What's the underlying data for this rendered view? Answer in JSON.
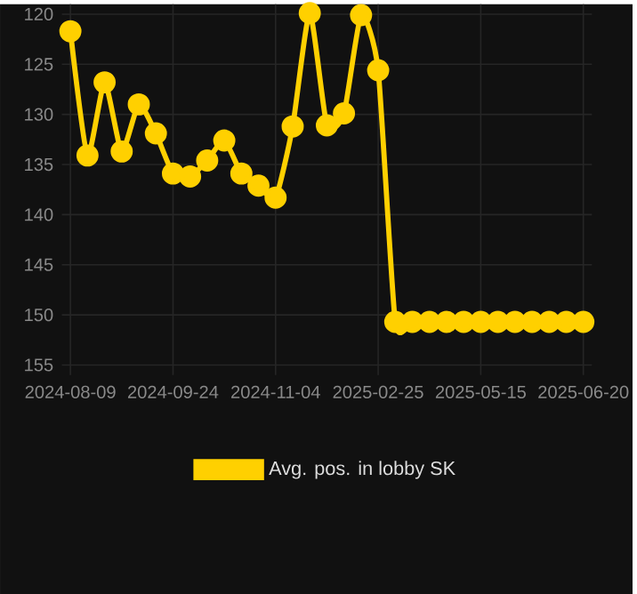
{
  "chart_data": {
    "type": "line",
    "categories": [
      "2024-08-09",
      null,
      null,
      null,
      null,
      null,
      "2024-09-24",
      null,
      null,
      null,
      null,
      null,
      "2024-11-04",
      null,
      null,
      null,
      null,
      null,
      "2025-02-25",
      null,
      null,
      null,
      null,
      null,
      "2025-05-15",
      null,
      null,
      null,
      null,
      null,
      "2025-06-20"
    ],
    "series": [
      {
        "name": "Avg. pos. in lobby SK",
        "color": "#ffd000",
        "values": [
          121.7,
          134.1,
          126.8,
          133.7,
          129.0,
          131.9,
          135.9,
          136.2,
          134.6,
          132.6,
          135.9,
          137.1,
          138.3,
          131.2,
          119.9,
          131.1,
          129.9,
          120.1,
          125.6,
          150.7,
          150.7,
          150.7,
          150.7,
          150.7,
          150.7,
          150.7,
          150.7,
          150.7,
          150.7,
          150.7,
          150.7
        ]
      }
    ],
    "ylim": [
      156,
      119
    ],
    "yticks": [
      120,
      125,
      130,
      135,
      140,
      145,
      150,
      155
    ],
    "grid": true,
    "legend": "bottom",
    "marker": "circle",
    "line_style": "solid"
  }
}
